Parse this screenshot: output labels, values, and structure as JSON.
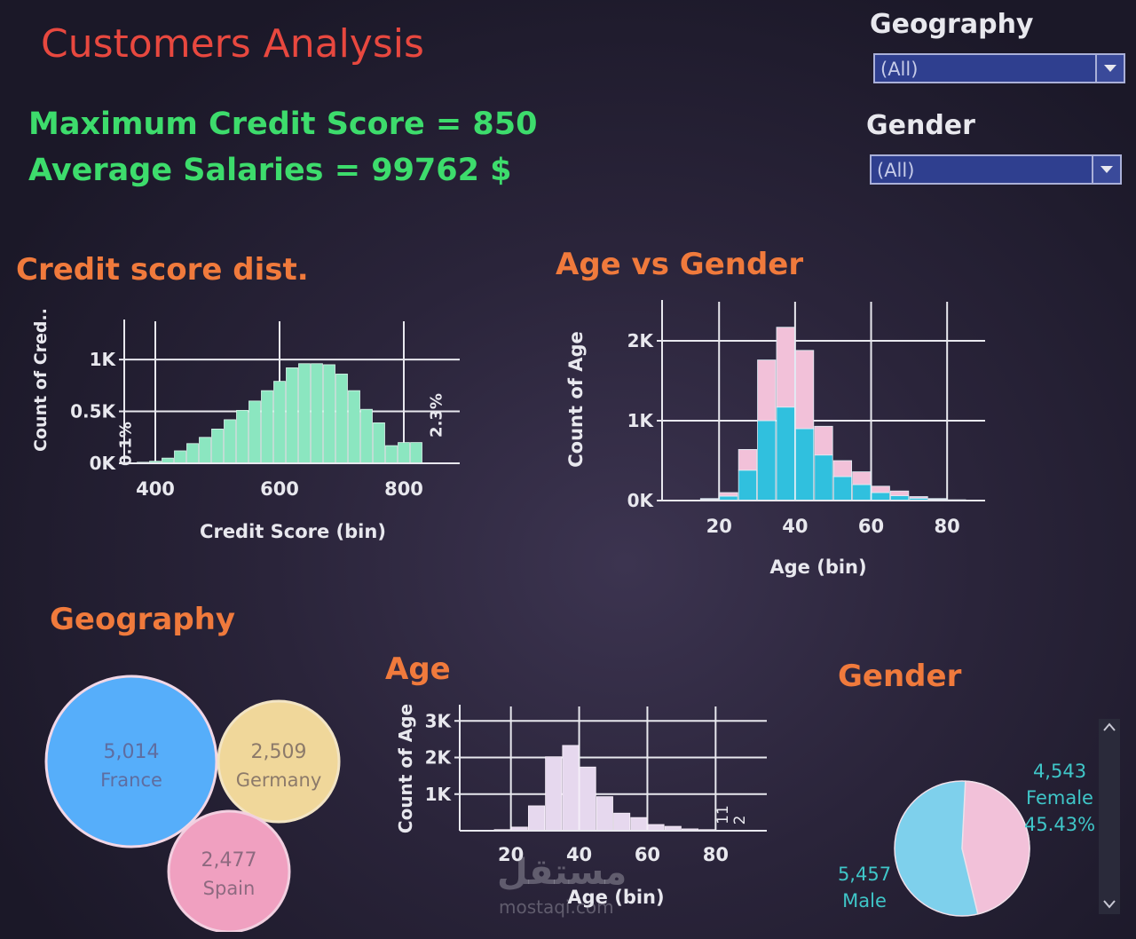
{
  "title": "Customers Analysis",
  "kpis": {
    "max_credit": "Maximum Credit Score = 850",
    "avg_salary": "Average Salaries = 99762 $"
  },
  "filters": {
    "geography": {
      "label": "Geography",
      "value": "(All)"
    },
    "gender": {
      "label": "Gender",
      "value": "(All)"
    }
  },
  "sections": {
    "credit": "Credit score dist.",
    "age_gender": "Age vs Gender",
    "geography": "Geography",
    "age": "Age",
    "gender": "Gender"
  },
  "colors": {
    "green": "#8be6c0",
    "pink": "#f2c1d9",
    "blue": "#30c0de",
    "lilac": "#e6d8ee",
    "france": "#56aefa",
    "germany": "#f0d79a",
    "spain": "#f0a0c0"
  },
  "chart_data": [
    {
      "id": "credit",
      "type": "bar",
      "xlabel": "Credit Score (bin)",
      "ylabel": "Count of Cred..",
      "x_ticks": [
        "400",
        "600",
        "800"
      ],
      "y_ticks": [
        "0K",
        "0.5K",
        "1K"
      ],
      "bin_start": 350,
      "bin_width": 20,
      "values": [
        5,
        10,
        20,
        50,
        120,
        190,
        250,
        330,
        420,
        510,
        600,
        700,
        790,
        920,
        960,
        960,
        950,
        860,
        700,
        520,
        390,
        170,
        200,
        200
      ],
      "ylim": [
        0,
        1300
      ],
      "xlim": [
        350,
        890
      ],
      "annotations": [
        "0.1%",
        "2.3%"
      ]
    },
    {
      "id": "age_gender",
      "type": "bar",
      "stacked": true,
      "xlabel": "Age (bin)",
      "ylabel": "Count of Age",
      "x_ticks": [
        "20",
        "40",
        "60",
        "80"
      ],
      "y_ticks": [
        "0K",
        "1K",
        "2K"
      ],
      "bin_start": 15,
      "bin_width": 5,
      "series": [
        {
          "name": "Male",
          "values": [
            15,
            55,
            380,
            1000,
            1170,
            900,
            570,
            300,
            200,
            100,
            60,
            30,
            15,
            5
          ]
        },
        {
          "name": "Female",
          "values": [
            10,
            45,
            260,
            760,
            1000,
            980,
            360,
            200,
            160,
            80,
            60,
            20,
            10,
            5
          ]
        }
      ],
      "ylim": [
        0,
        2400
      ],
      "xlim": [
        5,
        90
      ]
    },
    {
      "id": "geography",
      "type": "bubble",
      "items": [
        {
          "label": "France",
          "value": "5,014"
        },
        {
          "label": "Germany",
          "value": "2,509"
        },
        {
          "label": "Spain",
          "value": "2,477"
        }
      ]
    },
    {
      "id": "age",
      "type": "bar",
      "xlabel": "Age (bin)",
      "ylabel": "Count of Age",
      "x_ticks": [
        "20",
        "40",
        "60",
        "80"
      ],
      "y_ticks": [
        "1K",
        "2K",
        "3K"
      ],
      "bin_start": 15,
      "bin_width": 5,
      "values": [
        30,
        100,
        680,
        2020,
        2330,
        1740,
        930,
        480,
        360,
        170,
        120,
        50,
        30,
        11,
        2
      ],
      "ylim": [
        0,
        3200
      ],
      "xlim": [
        5,
        95
      ],
      "annotations": [
        "11",
        "2"
      ]
    },
    {
      "id": "gender",
      "type": "pie",
      "slices": [
        {
          "label": "Female",
          "value": "4,543",
          "percent": "45.43%"
        },
        {
          "label": "Male",
          "value": "5,457"
        }
      ]
    }
  ],
  "watermark": {
    "arabic": "مستقل",
    "latin": "mostaqi.com"
  }
}
